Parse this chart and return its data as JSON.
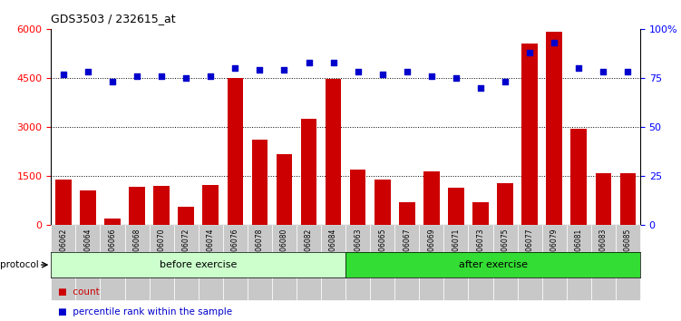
{
  "title": "GDS3503 / 232615_at",
  "categories": [
    "GSM306062",
    "GSM306064",
    "GSM306066",
    "GSM306068",
    "GSM306070",
    "GSM306072",
    "GSM306074",
    "GSM306076",
    "GSM306078",
    "GSM306080",
    "GSM306082",
    "GSM306084",
    "GSM306063",
    "GSM306065",
    "GSM306067",
    "GSM306069",
    "GSM306071",
    "GSM306073",
    "GSM306075",
    "GSM306077",
    "GSM306079",
    "GSM306081",
    "GSM306083",
    "GSM306085"
  ],
  "bar_values": [
    1380,
    1050,
    180,
    1150,
    1200,
    550,
    1220,
    4500,
    2600,
    2150,
    3250,
    4480,
    1680,
    1380,
    700,
    1620,
    1120,
    700,
    1280,
    5550,
    5900,
    2950,
    1580,
    1580
  ],
  "scatter_values": [
    77,
    78,
    73,
    76,
    76,
    75,
    76,
    80,
    79,
    79,
    83,
    83,
    78,
    77,
    78,
    76,
    75,
    70,
    73,
    88,
    93,
    80,
    78,
    78
  ],
  "bar_color": "#cc0000",
  "scatter_color": "#0000cc",
  "ylim_left": [
    0,
    6000
  ],
  "ylim_right": [
    0,
    100
  ],
  "yticks_left": [
    0,
    1500,
    3000,
    4500,
    6000
  ],
  "yticks_right": [
    0,
    25,
    50,
    75,
    100
  ],
  "grid_values": [
    1500,
    3000,
    4500
  ],
  "before_exercise_count": 12,
  "after_exercise_count": 12,
  "protocol_label": "protocol",
  "before_label": "before exercise",
  "after_label": "after exercise",
  "before_color": "#ccffcc",
  "after_color": "#33dd33",
  "legend_count_label": "count",
  "legend_percentile_label": "percentile rank within the sample",
  "bar_width": 0.65,
  "tick_bg_color": "#c8c8c8",
  "bg_color": "#ffffff",
  "chart_bg": "#ffffff",
  "figsize": [
    7.51,
    3.54
  ],
  "dpi": 100
}
